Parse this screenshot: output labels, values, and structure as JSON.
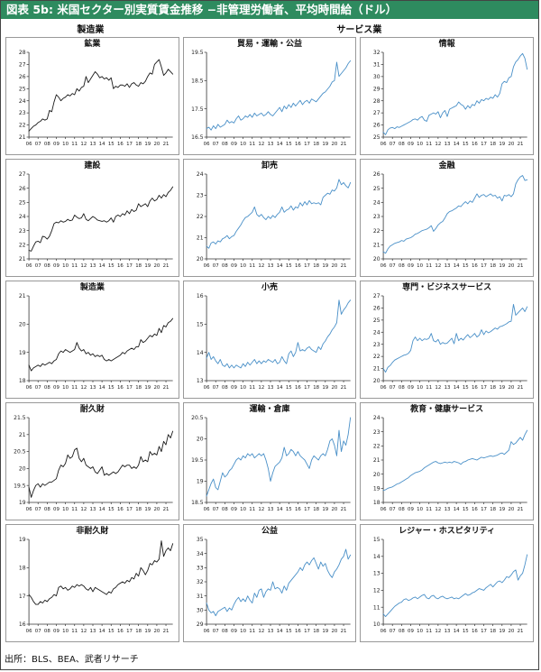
{
  "header": {
    "title": "図表 5b: 米国セクター別実質賃金推移 −非管理労働者、平均時間給（ドル）",
    "bar_color": "#2e8b5f"
  },
  "column_groups": [
    {
      "label": "製造業"
    },
    {
      "label": "サービス業"
    }
  ],
  "footer": {
    "source": "出所：BLS、BEA、武者リサーチ"
  },
  "colors": {
    "black": "#1a1a1a",
    "blue": "#4a90c8",
    "axis": "#333333"
  },
  "x_labels": [
    "06",
    "07",
    "08",
    "09",
    "10",
    "11",
    "12",
    "13",
    "14",
    "15",
    "16",
    "17",
    "18",
    "19",
    "20",
    "21"
  ],
  "chart_data": [
    {
      "id": "mining",
      "type": "line",
      "title": "鉱業",
      "group": "製造業",
      "line": "black",
      "ylim": [
        21,
        28
      ],
      "yticks": [
        21,
        22,
        23,
        24,
        25,
        26,
        27,
        28
      ],
      "values": [
        21.5,
        21.7,
        21.9,
        22.0,
        22.2,
        22.3,
        22.5,
        22.4,
        22.5,
        23.2,
        23.1,
        23.9,
        24.5,
        24.3,
        24.0,
        24.2,
        24.3,
        24.5,
        24.4,
        24.6,
        24.5,
        25.0,
        24.8,
        25.1,
        25.2,
        26.0,
        25.5,
        25.8,
        26.1,
        26.4,
        26.2,
        25.9,
        26.0,
        25.8,
        25.9,
        25.7,
        25.9,
        25.0,
        25.2,
        25.1,
        25.3,
        25.3,
        25.2,
        25.4,
        25.1,
        25.4,
        25.5,
        25.3,
        25.2,
        25.5,
        25.4,
        25.6,
        26.0,
        26.3,
        26.2,
        27.0,
        27.2,
        27.4,
        26.8,
        26.1,
        26.3,
        26.6,
        26.4,
        26.2
      ]
    },
    {
      "id": "trade-transport-utilities",
      "type": "line",
      "title": "貿易・運輸・公益",
      "group": "サービス業",
      "line": "blue",
      "ylim": [
        16.5,
        19.5
      ],
      "yticks": [
        16.5,
        17.5,
        18.5,
        19.5
      ],
      "values": [
        16.8,
        16.85,
        16.75,
        16.9,
        16.8,
        16.95,
        16.85,
        16.9,
        16.95,
        17.1,
        17.0,
        17.05,
        17.0,
        17.15,
        17.25,
        17.1,
        17.15,
        17.25,
        17.2,
        17.3,
        17.2,
        17.35,
        17.25,
        17.3,
        17.35,
        17.25,
        17.3,
        17.4,
        17.3,
        17.25,
        17.35,
        17.45,
        17.55,
        17.4,
        17.6,
        17.5,
        17.65,
        17.55,
        17.7,
        17.6,
        17.7,
        17.8,
        17.65,
        17.75,
        17.8,
        17.7,
        17.85,
        17.8,
        17.75,
        17.85,
        17.95,
        18.05,
        18.1,
        18.2,
        18.3,
        18.45,
        18.5,
        19.15,
        18.65,
        18.75,
        18.85,
        18.95,
        19.1,
        19.2
      ]
    },
    {
      "id": "information",
      "type": "line",
      "title": "情報",
      "group": "サービス業",
      "line": "blue",
      "ylim": [
        25,
        32
      ],
      "yticks": [
        25,
        26,
        27,
        28,
        29,
        30,
        31,
        32
      ],
      "values": [
        25.4,
        25.2,
        25.6,
        25.75,
        25.8,
        25.7,
        25.85,
        25.8,
        25.9,
        26.0,
        26.1,
        26.2,
        26.3,
        26.45,
        26.5,
        26.4,
        26.6,
        26.7,
        26.4,
        26.3,
        26.8,
        26.9,
        27.0,
        26.9,
        27.1,
        26.6,
        27.0,
        27.2,
        26.7,
        27.3,
        27.4,
        27.5,
        27.6,
        27.9,
        27.7,
        27.6,
        27.3,
        27.6,
        27.4,
        27.7,
        27.6,
        28.0,
        27.8,
        28.1,
        28.0,
        28.2,
        28.1,
        28.3,
        28.2,
        28.5,
        28.3,
        28.6,
        29.4,
        29.6,
        29.5,
        29.9,
        30.0,
        30.8,
        31.2,
        31.4,
        31.7,
        31.9,
        31.5,
        30.6
      ]
    },
    {
      "id": "construction",
      "type": "line",
      "title": "建設",
      "group": "製造業",
      "line": "black",
      "ylim": [
        21,
        27
      ],
      "yticks": [
        21,
        22,
        23,
        24,
        25,
        26,
        27
      ],
      "values": [
        21.6,
        21.55,
        21.9,
        22.2,
        22.25,
        22.15,
        22.6,
        22.55,
        22.4,
        22.6,
        23.0,
        23.5,
        23.6,
        23.55,
        23.7,
        23.6,
        23.65,
        23.8,
        23.7,
        23.75,
        24.1,
        23.95,
        23.85,
        23.9,
        24.2,
        23.8,
        23.7,
        23.85,
        24.0,
        23.9,
        23.75,
        23.7,
        23.65,
        23.7,
        23.6,
        23.7,
        23.9,
        23.6,
        24.0,
        24.1,
        24.0,
        24.2,
        24.1,
        24.4,
        24.2,
        24.5,
        24.35,
        24.45,
        24.9,
        24.7,
        24.8,
        24.9,
        24.7,
        25.1,
        25.3,
        25.1,
        25.2,
        25.5,
        25.3,
        25.55,
        25.4,
        25.7,
        25.85,
        26.1
      ]
    },
    {
      "id": "wholesale",
      "type": "line",
      "title": "卸売",
      "group": "サービス業",
      "line": "blue",
      "ylim": [
        20,
        24
      ],
      "yticks": [
        20,
        21,
        22,
        23,
        24
      ],
      "values": [
        20.6,
        20.5,
        20.75,
        20.8,
        20.7,
        20.85,
        20.8,
        20.95,
        21.0,
        21.1,
        20.95,
        21.05,
        21.1,
        21.3,
        21.45,
        21.6,
        21.8,
        21.95,
        22.0,
        22.1,
        22.2,
        22.45,
        22.1,
        22.0,
        22.1,
        21.95,
        21.85,
        22.0,
        21.9,
        22.05,
        21.95,
        22.1,
        22.2,
        22.45,
        22.2,
        22.3,
        22.35,
        22.5,
        22.3,
        22.45,
        22.4,
        22.65,
        22.5,
        22.7,
        22.55,
        22.75,
        22.6,
        22.65,
        22.6,
        22.65,
        22.55,
        22.9,
        23.0,
        23.1,
        23.05,
        23.25,
        23.2,
        23.35,
        23.75,
        23.5,
        23.6,
        23.45,
        23.35,
        23.6
      ]
    },
    {
      "id": "finance",
      "type": "line",
      "title": "金融",
      "group": "サービス業",
      "line": "blue",
      "ylim": [
        20,
        26
      ],
      "yticks": [
        20,
        21,
        22,
        23,
        24,
        25,
        26
      ],
      "values": [
        20.5,
        20.4,
        20.7,
        20.9,
        21.0,
        21.1,
        21.15,
        21.2,
        21.3,
        21.25,
        21.4,
        21.45,
        21.5,
        21.6,
        21.75,
        21.8,
        21.9,
        22.0,
        22.05,
        22.1,
        22.2,
        22.35,
        21.95,
        22.15,
        22.4,
        22.55,
        22.65,
        22.9,
        23.2,
        23.35,
        23.4,
        23.5,
        23.6,
        23.75,
        23.7,
        23.9,
        24.05,
        23.9,
        24.1,
        24.0,
        24.3,
        24.6,
        24.35,
        24.5,
        24.55,
        24.4,
        24.5,
        24.6,
        24.45,
        24.5,
        24.3,
        24.4,
        24.1,
        24.5,
        24.45,
        24.55,
        24.4,
        24.6,
        25.3,
        25.6,
        25.8,
        25.9,
        25.55,
        25.6
      ]
    },
    {
      "id": "manufacturing",
      "type": "line",
      "title": "製造業",
      "group": "製造業",
      "line": "black",
      "ylim": [
        18,
        21
      ],
      "yticks": [
        18,
        19,
        20,
        21
      ],
      "values": [
        18.55,
        18.35,
        18.45,
        18.5,
        18.55,
        18.5,
        18.6,
        18.55,
        18.6,
        18.65,
        18.6,
        18.7,
        18.75,
        18.95,
        19.05,
        19.0,
        19.1,
        19.05,
        19.0,
        19.05,
        19.1,
        19.35,
        19.15,
        19.05,
        19.1,
        18.95,
        19.0,
        18.9,
        18.95,
        18.85,
        18.9,
        18.85,
        18.9,
        18.75,
        18.7,
        18.75,
        18.7,
        18.75,
        18.8,
        18.85,
        18.9,
        19.0,
        18.95,
        19.05,
        19.1,
        19.15,
        19.1,
        19.2,
        19.2,
        19.45,
        19.35,
        19.4,
        19.5,
        19.6,
        19.55,
        19.65,
        19.6,
        19.85,
        19.7,
        19.95,
        19.9,
        20.05,
        20.1,
        20.2
      ]
    },
    {
      "id": "retail",
      "type": "line",
      "title": "小売",
      "group": "サービス業",
      "line": "blue",
      "ylim": [
        13,
        16
      ],
      "yticks": [
        13,
        14,
        15,
        16
      ],
      "values": [
        13.8,
        14.0,
        13.75,
        13.85,
        13.7,
        13.6,
        13.75,
        13.55,
        13.5,
        13.6,
        13.45,
        13.55,
        13.45,
        13.55,
        13.5,
        13.45,
        13.6,
        13.5,
        13.65,
        13.55,
        13.65,
        13.75,
        13.6,
        13.7,
        13.6,
        13.7,
        13.65,
        13.75,
        13.7,
        13.65,
        13.75,
        13.6,
        13.65,
        13.85,
        13.7,
        13.6,
        13.95,
        14.05,
        13.85,
        14.0,
        14.35,
        14.05,
        14.1,
        14.05,
        14.15,
        14.2,
        14.1,
        14.05,
        14.0,
        14.2,
        14.1,
        14.3,
        14.4,
        14.55,
        14.65,
        14.8,
        14.9,
        15.05,
        15.85,
        15.35,
        15.5,
        15.6,
        15.75,
        15.85
      ]
    },
    {
      "id": "professional-business-services",
      "type": "line",
      "title": "専門・ビジネスサービス",
      "group": "サービス業",
      "line": "blue",
      "ylim": [
        20,
        27
      ],
      "yticks": [
        20,
        21,
        22,
        23,
        24,
        25,
        26,
        27
      ],
      "values": [
        21.0,
        20.7,
        21.1,
        21.25,
        21.5,
        21.7,
        21.8,
        21.9,
        22.0,
        22.1,
        22.15,
        22.25,
        22.5,
        23.3,
        23.6,
        23.3,
        23.5,
        23.3,
        23.45,
        23.4,
        23.5,
        23.9,
        23.3,
        23.2,
        23.4,
        23.0,
        23.15,
        23.05,
        23.1,
        23.3,
        23.5,
        23.05,
        23.9,
        23.3,
        23.5,
        23.35,
        23.6,
        23.8,
        23.55,
        23.7,
        23.9,
        23.6,
        23.75,
        24.2,
        23.8,
        24.1,
        23.95,
        24.05,
        24.2,
        24.35,
        24.25,
        24.45,
        24.5,
        24.6,
        24.7,
        24.85,
        24.9,
        26.3,
        25.4,
        25.6,
        25.8,
        26.0,
        25.7,
        26.1
      ]
    },
    {
      "id": "durable-goods",
      "type": "line",
      "title": "耐久財",
      "group": "製造業",
      "line": "black",
      "ylim": [
        19,
        21.5
      ],
      "yticks": [
        19,
        19.5,
        20,
        20.5,
        21,
        21.5
      ],
      "values": [
        19.45,
        19.15,
        19.35,
        19.5,
        19.55,
        19.45,
        19.55,
        19.5,
        19.55,
        19.6,
        19.6,
        19.65,
        19.7,
        19.95,
        20.1,
        20.05,
        20.15,
        20.4,
        20.3,
        20.35,
        20.55,
        20.6,
        20.3,
        20.2,
        20.3,
        20.1,
        20.05,
        20.0,
        20.05,
        19.9,
        19.85,
        19.95,
        20.05,
        19.8,
        19.85,
        19.8,
        19.85,
        19.9,
        19.85,
        19.9,
        20.0,
        20.1,
        20.05,
        20.1,
        20.1,
        20.0,
        20.05,
        20.0,
        20.1,
        20.35,
        20.2,
        20.25,
        20.2,
        20.5,
        20.4,
        20.45,
        20.4,
        20.65,
        20.5,
        20.8,
        20.7,
        21.0,
        20.9,
        21.1
      ]
    },
    {
      "id": "transport-warehousing",
      "type": "line",
      "title": "運輸・倉庫",
      "group": "サービス業",
      "line": "blue",
      "ylim": [
        18.5,
        20.5
      ],
      "yticks": [
        18.5,
        19,
        19.5,
        20,
        20.5
      ],
      "values": [
        18.65,
        18.8,
        18.95,
        19.05,
        18.85,
        18.8,
        19.0,
        19.2,
        19.1,
        19.15,
        19.25,
        19.3,
        19.4,
        19.5,
        19.55,
        19.5,
        19.6,
        19.55,
        19.65,
        19.6,
        19.65,
        19.55,
        19.6,
        19.65,
        19.6,
        19.65,
        19.5,
        19.3,
        19.0,
        19.2,
        19.35,
        19.4,
        19.45,
        19.55,
        19.8,
        19.6,
        19.65,
        19.75,
        19.7,
        19.6,
        19.7,
        19.6,
        19.55,
        19.5,
        19.4,
        19.3,
        19.5,
        19.6,
        19.55,
        19.5,
        19.6,
        19.65,
        19.6,
        19.75,
        19.95,
        20.0,
        19.85,
        19.6,
        20.2,
        19.7,
        19.95,
        19.85,
        20.1,
        20.5
      ]
    },
    {
      "id": "education-health-services",
      "type": "line",
      "title": "教育・健康サービス",
      "group": "サービス業",
      "line": "blue",
      "ylim": [
        18,
        24
      ],
      "yticks": [
        18,
        19,
        20,
        21,
        22,
        23,
        24
      ],
      "values": [
        18.85,
        18.9,
        19.0,
        19.05,
        19.1,
        19.2,
        19.3,
        19.35,
        19.45,
        19.55,
        19.65,
        19.75,
        19.9,
        20.0,
        20.1,
        20.15,
        20.2,
        20.3,
        20.45,
        20.55,
        20.65,
        20.75,
        20.85,
        20.9,
        20.8,
        20.75,
        20.8,
        20.85,
        20.8,
        20.85,
        20.8,
        20.9,
        20.85,
        20.8,
        20.7,
        20.85,
        20.9,
        21.0,
        21.05,
        21.1,
        21.05,
        21.0,
        21.1,
        21.2,
        21.15,
        21.2,
        21.25,
        21.3,
        21.25,
        21.3,
        21.35,
        21.45,
        21.5,
        21.4,
        21.55,
        21.7,
        22.3,
        22.1,
        22.2,
        22.4,
        22.6,
        22.4,
        22.8,
        23.1
      ]
    },
    {
      "id": "nondurable-goods",
      "type": "line",
      "title": "非耐久財",
      "group": "製造業",
      "line": "black",
      "ylim": [
        16,
        19
      ],
      "yticks": [
        16,
        17,
        18,
        19
      ],
      "values": [
        17.05,
        16.95,
        16.8,
        16.7,
        16.7,
        16.8,
        16.75,
        16.85,
        16.8,
        16.9,
        16.95,
        17.05,
        17.0,
        17.3,
        17.35,
        17.25,
        17.3,
        17.2,
        17.25,
        17.35,
        17.3,
        17.4,
        17.35,
        17.4,
        17.35,
        17.25,
        17.2,
        17.3,
        17.15,
        17.3,
        17.25,
        17.2,
        17.15,
        17.1,
        17.05,
        17.15,
        17.1,
        17.25,
        17.3,
        17.4,
        17.45,
        17.5,
        17.45,
        17.55,
        17.5,
        17.65,
        17.6,
        17.8,
        17.7,
        18.0,
        17.9,
        17.75,
        17.9,
        18.15,
        18.1,
        18.25,
        18.2,
        18.3,
        18.95,
        18.4,
        18.6,
        18.7,
        18.6,
        18.85
      ]
    },
    {
      "id": "utilities",
      "type": "line",
      "title": "公益",
      "group": "サービス業",
      "line": "blue",
      "ylim": [
        29,
        35
      ],
      "yticks": [
        29,
        30,
        31,
        32,
        33,
        34,
        35
      ],
      "values": [
        30.5,
        30.0,
        29.8,
        29.9,
        29.6,
        29.9,
        30.0,
        30.1,
        30.2,
        29.9,
        30.15,
        30.0,
        30.4,
        30.7,
        30.9,
        30.6,
        30.8,
        30.6,
        31.0,
        30.7,
        30.5,
        31.2,
        30.9,
        31.4,
        31.5,
        30.9,
        31.3,
        31.5,
        31.4,
        32.0,
        31.5,
        31.6,
        31.5,
        31.2,
        31.7,
        31.4,
        31.9,
        32.1,
        32.3,
        32.5,
        32.7,
        33.0,
        32.8,
        33.2,
        33.4,
        33.2,
        33.5,
        33.7,
        33.3,
        32.9,
        33.4,
        33.1,
        33.3,
        32.8,
        32.5,
        32.3,
        32.7,
        32.9,
        33.2,
        33.6,
        33.8,
        34.3,
        33.6,
        33.9
      ]
    },
    {
      "id": "leisure-hospitality",
      "type": "line",
      "title": "レジャー・ホスピタリティ",
      "group": "サービス業",
      "line": "blue",
      "ylim": [
        10,
        15
      ],
      "yticks": [
        10,
        11,
        12,
        13,
        14,
        15
      ],
      "values": [
        10.6,
        10.45,
        10.6,
        10.75,
        10.9,
        11.05,
        11.15,
        11.25,
        11.3,
        11.45,
        11.5,
        11.4,
        11.45,
        11.55,
        11.6,
        11.5,
        11.6,
        11.7,
        11.75,
        11.55,
        11.5,
        11.65,
        11.7,
        11.55,
        11.5,
        11.6,
        11.65,
        11.55,
        11.5,
        11.55,
        11.6,
        11.5,
        11.55,
        11.5,
        11.6,
        11.7,
        11.8,
        11.7,
        11.75,
        11.85,
        11.9,
        12.0,
        12.1,
        12.05,
        12.0,
        12.15,
        12.25,
        12.35,
        12.2,
        12.35,
        12.5,
        12.55,
        12.45,
        12.6,
        12.8,
        12.75,
        12.9,
        13.1,
        13.2,
        12.6,
        12.85,
        13.0,
        13.5,
        14.1
      ]
    }
  ]
}
